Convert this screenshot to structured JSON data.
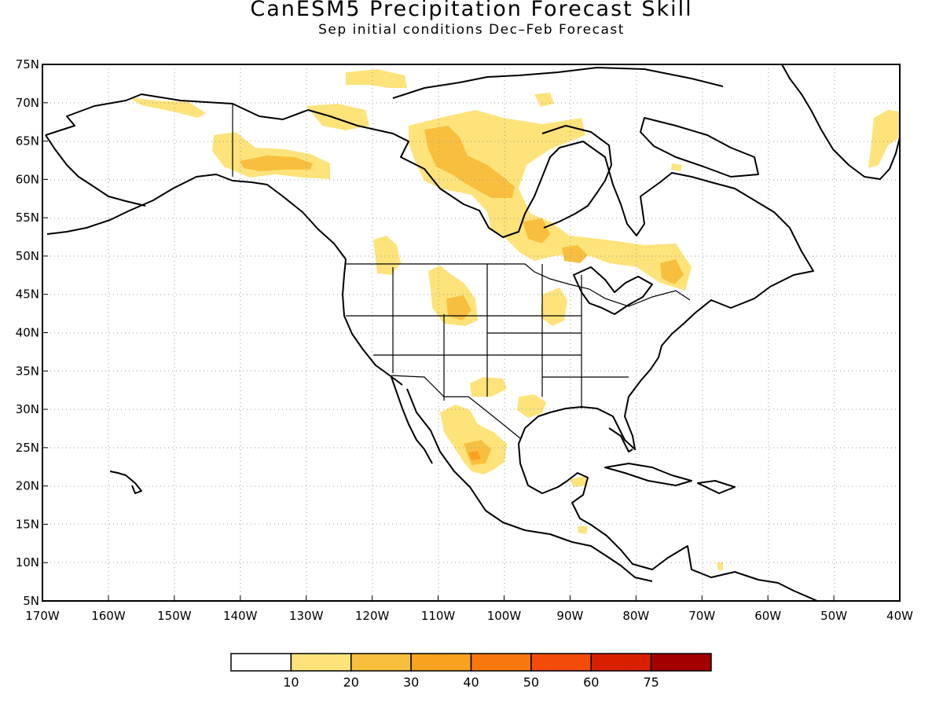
{
  "title": "CanESM5 Precipitation Forecast Skill",
  "subtitle": "Sep initial conditions  Dec–Feb Forecast",
  "map": {
    "region": "North America",
    "lon_range": [
      -170,
      -40
    ],
    "lat_range": [
      5,
      75
    ],
    "grid": "dotted",
    "lat_ticks": [
      "75N",
      "70N",
      "65N",
      "60N",
      "55N",
      "50N",
      "45N",
      "40N",
      "35N",
      "30N",
      "25N",
      "20N",
      "15N",
      "10N",
      "5N"
    ],
    "lon_ticks": [
      "170W",
      "160W",
      "150W",
      "140W",
      "130W",
      "120W",
      "110W",
      "100W",
      "90W",
      "80W",
      "70W",
      "60W",
      "50W",
      "40W"
    ]
  },
  "colorbar": {
    "colors": [
      "#ffffff",
      "#fde37a",
      "#f8bf3e",
      "#f8a21f",
      "#f7780f",
      "#f24b0a",
      "#d82000",
      "#a30000"
    ],
    "labels": [
      "10",
      "20",
      "30",
      "40",
      "50",
      "60",
      "75"
    ]
  },
  "skill_regions": [
    {
      "lon": -138,
      "lat": 62.2,
      "level": 2
    },
    {
      "lon": -127,
      "lat": 61.5,
      "level": 1
    },
    {
      "lon": -112,
      "lat": 64,
      "level": 1
    },
    {
      "lon": -107,
      "lat": 61.5,
      "level": 2
    },
    {
      "lon": -104,
      "lat": 58.5,
      "level": 2
    },
    {
      "lon": -100,
      "lat": 52.5,
      "level": 2
    },
    {
      "lon": -91,
      "lat": 50.5,
      "level": 2
    },
    {
      "lon": -76,
      "lat": 48,
      "level": 2
    },
    {
      "lon": -107.5,
      "lat": 44.5,
      "level": 2
    },
    {
      "lon": -106,
      "lat": 25.5,
      "level": 2
    },
    {
      "lon": -104,
      "lat": 23.8,
      "level": 3
    }
  ]
}
